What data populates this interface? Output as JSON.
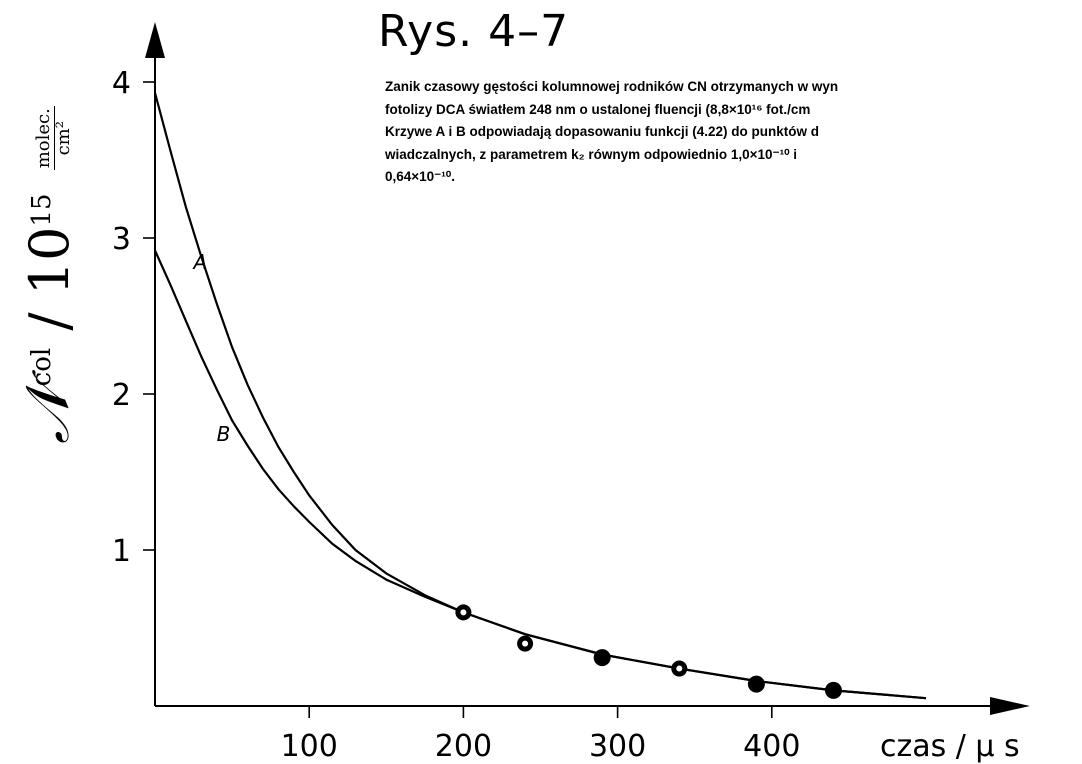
{
  "chart_data": {
    "type": "line",
    "title": "Rys. 4–7",
    "caption": [
      "Zanik czasowy gęstości kolumnowej rodników CN otrzymanych w wyn",
      "fotolizy DCA światłem 248 nm o ustalonej fluencji (8,8×10¹⁶ fot./cm",
      "Krzywe A i B odpowiadają dopasowaniu funkcji (4.22) do punktów d",
      "wiadczalnych, z parametrem k₂ równym odpowiednio 1,0×10⁻¹⁰ i",
      "0,64×10⁻¹⁰."
    ],
    "xlabel": "czas / μ s",
    "ylabel": {
      "symbol": "𝒩",
      "sup": "col",
      "scale": "/ 10",
      "scale_exp": "15",
      "unit_num": "molec.",
      "unit_den": "cm²"
    },
    "xlim": [
      0,
      560
    ],
    "ylim": [
      0,
      4.2
    ],
    "xticks": [
      100,
      200,
      300,
      400
    ],
    "yticks": [
      1,
      2,
      3,
      4
    ],
    "series": [
      {
        "name": "A",
        "x": [
          0,
          10,
          20,
          30,
          40,
          50,
          60,
          70,
          80,
          90,
          100,
          115,
          130,
          150,
          175,
          200,
          240,
          290,
          340,
          390,
          440,
          500
        ],
        "y": [
          3.93,
          3.56,
          3.2,
          2.88,
          2.58,
          2.3,
          2.06,
          1.85,
          1.66,
          1.5,
          1.35,
          1.16,
          1.0,
          0.85,
          0.71,
          0.6,
          0.46,
          0.33,
          0.24,
          0.16,
          0.1,
          0.05
        ]
      },
      {
        "name": "B",
        "x": [
          0,
          10,
          20,
          30,
          40,
          50,
          60,
          70,
          80,
          90,
          100,
          115,
          130,
          150,
          175,
          200,
          240,
          290,
          340,
          390,
          440,
          500
        ],
        "y": [
          2.92,
          2.7,
          2.47,
          2.24,
          2.03,
          1.83,
          1.67,
          1.52,
          1.39,
          1.28,
          1.18,
          1.04,
          0.93,
          0.81,
          0.7,
          0.6,
          0.46,
          0.33,
          0.24,
          0.16,
          0.1,
          0.05
        ]
      }
    ],
    "points": [
      {
        "x": 200,
        "y": 0.6,
        "marker": "open"
      },
      {
        "x": 240,
        "y": 0.4,
        "marker": "open"
      },
      {
        "x": 290,
        "y": 0.31,
        "marker": "filled"
      },
      {
        "x": 340,
        "y": 0.24,
        "marker": "open"
      },
      {
        "x": 390,
        "y": 0.14,
        "marker": "filled"
      },
      {
        "x": 440,
        "y": 0.1,
        "marker": "filled"
      }
    ],
    "grid": false,
    "legend": "none"
  }
}
